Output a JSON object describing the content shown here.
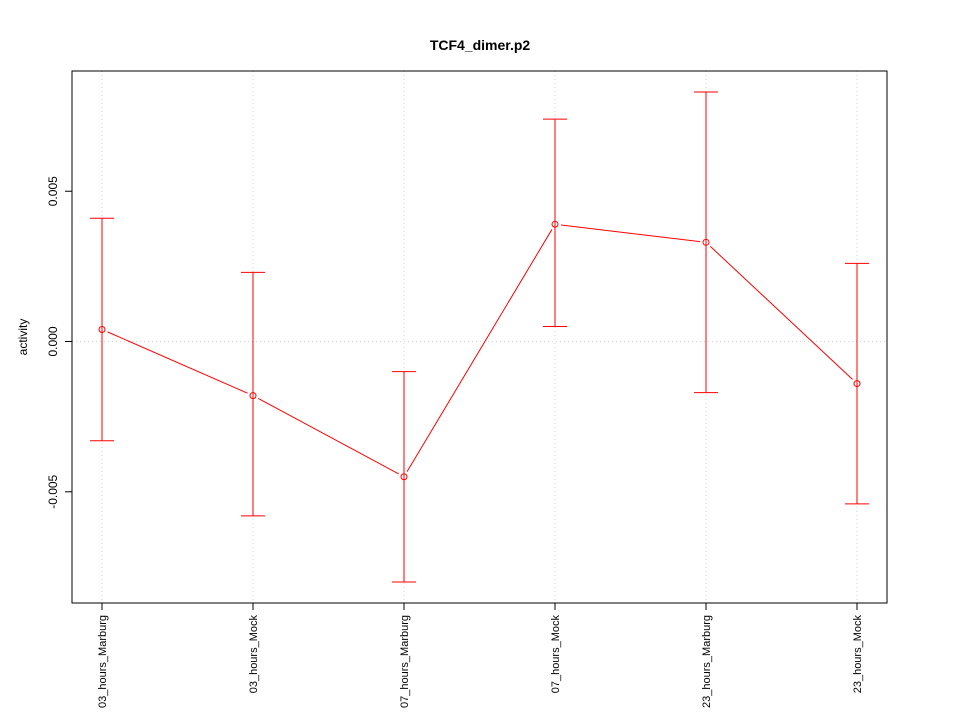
{
  "chart_data": {
    "type": "line",
    "title": "TCF4_dimer.p2",
    "xlabel": "",
    "ylabel": "activity",
    "categories": [
      "03_hours_Marburg",
      "03_hours_Mock",
      "07_hours_Marburg",
      "07_hours_Mock",
      "23_hours_Marburg",
      "23_hours_Mock"
    ],
    "values": [
      0.0004,
      -0.0018,
      -0.0045,
      0.0039,
      0.0033,
      -0.0014
    ],
    "error_upper": [
      0.0041,
      0.0023,
      -0.001,
      0.0074,
      0.0083,
      0.0026
    ],
    "error_lower": [
      -0.0033,
      -0.0058,
      -0.008,
      0.0005,
      -0.0017,
      -0.0054
    ],
    "ylim": [
      -0.0087,
      0.009
    ],
    "yticks": [
      -0.005,
      0.0,
      0.005
    ],
    "ytick_labels": [
      "-0.005",
      "0.000",
      "0.005"
    ],
    "grid": true,
    "series_color": "#ff0000",
    "grid_color": "#d3d3d3"
  }
}
